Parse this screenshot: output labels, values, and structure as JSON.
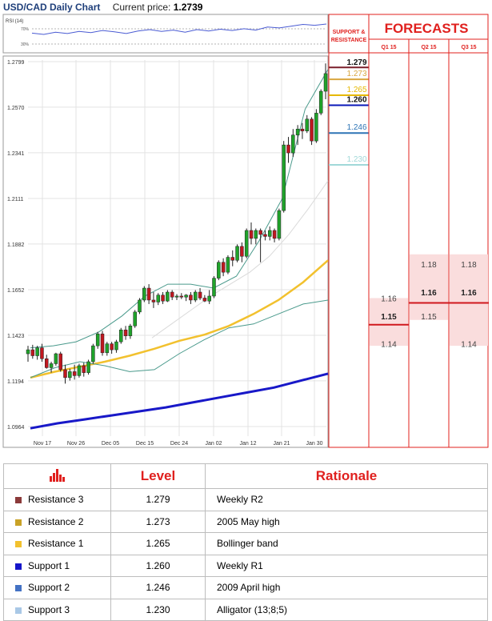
{
  "header": {
    "title": "USD/CAD Daily Chart",
    "price_label": "Current price:",
    "price_value": "1.2739"
  },
  "rsi": {
    "label": "RSI (14)",
    "tick_70": "70%",
    "tick_30": "30%"
  },
  "side": {
    "sr_title_1": "SUPPORT &",
    "sr_title_2": "RESISTANCE",
    "forecasts_title": "FORECASTS",
    "quarters": [
      "Q1 15",
      "Q2 15",
      "Q3 15"
    ]
  },
  "sr_levels": [
    {
      "value": "1.279",
      "color": "#7a1f2b",
      "bold": true
    },
    {
      "value": "1.273",
      "color": "#d9a640",
      "bold": false
    },
    {
      "value": "1.265",
      "color": "#e6b800",
      "bold": false
    },
    {
      "value": "1.260",
      "color": "#0a17b8",
      "bold": true
    },
    {
      "value": "1.246",
      "color": "#2e75b6",
      "bold": false
    },
    {
      "value": "1.230",
      "color": "#a0d8d8",
      "bold": false
    }
  ],
  "forecast_cells": [
    {
      "col": 0,
      "lo": 1.137,
      "hi": 1.161
    },
    {
      "col": 1,
      "lo": 1.15,
      "hi": 1.183
    },
    {
      "col": 2,
      "lo": 1.137,
      "hi": 1.183
    }
  ],
  "forecast_labels": [
    {
      "col": 0,
      "text": "1.16",
      "value": 1.161,
      "bold": false
    },
    {
      "col": 0,
      "text": "1.15",
      "value": 1.152,
      "bold": true
    },
    {
      "col": 0,
      "text": "1.14",
      "value": 1.138,
      "bold": false
    },
    {
      "col": 1,
      "text": "1.18",
      "value": 1.178,
      "bold": false
    },
    {
      "col": 1,
      "text": "1.16",
      "value": 1.164,
      "bold": true
    },
    {
      "col": 1,
      "text": "1.15",
      "value": 1.152,
      "bold": false
    },
    {
      "col": 2,
      "text": "1.18",
      "value": 1.178,
      "bold": false
    },
    {
      "col": 2,
      "text": "1.16",
      "value": 1.164,
      "bold": true
    },
    {
      "col": 2,
      "text": "1.14",
      "value": 1.138,
      "bold": false
    }
  ],
  "forecast_lines": [
    {
      "col": 0,
      "value": 1.15
    },
    {
      "col": 1,
      "value": 1.161
    },
    {
      "col": 2,
      "value": 1.161
    }
  ],
  "table": {
    "head": {
      "level": "Level",
      "rationale": "Rationale"
    },
    "rows": [
      {
        "name": "Resistance 3",
        "level": "1.279",
        "rationale": "Weekly R2",
        "color": "#8b3a3a"
      },
      {
        "name": "Resistance 2",
        "level": "1.273",
        "rationale": "2005 May high",
        "color": "#c9a227"
      },
      {
        "name": "Resistance 1",
        "level": "1.265",
        "rationale": "Bollinger band",
        "color": "#f2c12e"
      },
      {
        "name": "Support 1",
        "level": "1.260",
        "rationale": "Weekly R1",
        "color": "#1515c9"
      },
      {
        "name": "Support 2",
        "level": "1.246",
        "rationale": "2009 April high",
        "color": "#4472c4"
      },
      {
        "name": "Support 3",
        "level": "1.230",
        "rationale": "Alligator (13;8;5)",
        "color": "#a9c8e6"
      }
    ]
  },
  "chart_data": {
    "type": "candlestick",
    "ylim": [
      1.09,
      1.283
    ],
    "yticks": [
      "1.2799",
      "1.2570",
      "1.2341",
      "1.2111",
      "1.1882",
      "1.1652",
      "1.1423",
      "1.1194",
      "1.0964"
    ],
    "xticks": [
      "Nov 17",
      "Nov 26",
      "Dec 05",
      "Dec 15",
      "Dec 24",
      "Jan 02",
      "Jan 12",
      "Jan 21",
      "Jan 30"
    ],
    "grid": true,
    "candles": [
      {
        "o": 1.133,
        "h": 1.137,
        "l": 1.129,
        "c": 1.135
      },
      {
        "o": 1.135,
        "h": 1.1375,
        "l": 1.1305,
        "c": 1.132
      },
      {
        "o": 1.132,
        "h": 1.137,
        "l": 1.13,
        "c": 1.136
      },
      {
        "o": 1.136,
        "h": 1.138,
        "l": 1.129,
        "c": 1.1305
      },
      {
        "o": 1.1305,
        "h": 1.1325,
        "l": 1.1255,
        "c": 1.126
      },
      {
        "o": 1.126,
        "h": 1.129,
        "l": 1.1235,
        "c": 1.128
      },
      {
        "o": 1.128,
        "h": 1.1335,
        "l": 1.127,
        "c": 1.133
      },
      {
        "o": 1.133,
        "h": 1.134,
        "l": 1.124,
        "c": 1.125
      },
      {
        "o": 1.125,
        "h": 1.1275,
        "l": 1.118,
        "c": 1.121
      },
      {
        "o": 1.121,
        "h": 1.1255,
        "l": 1.1195,
        "c": 1.124
      },
      {
        "o": 1.124,
        "h": 1.1275,
        "l": 1.12,
        "c": 1.122
      },
      {
        "o": 1.122,
        "h": 1.128,
        "l": 1.121,
        "c": 1.127
      },
      {
        "o": 1.127,
        "h": 1.1285,
        "l": 1.1215,
        "c": 1.1235
      },
      {
        "o": 1.1235,
        "h": 1.13,
        "l": 1.1225,
        "c": 1.129
      },
      {
        "o": 1.129,
        "h": 1.138,
        "l": 1.128,
        "c": 1.137
      },
      {
        "o": 1.137,
        "h": 1.144,
        "l": 1.1355,
        "c": 1.143
      },
      {
        "o": 1.143,
        "h": 1.1445,
        "l": 1.132,
        "c": 1.1335
      },
      {
        "o": 1.1335,
        "h": 1.139,
        "l": 1.132,
        "c": 1.138
      },
      {
        "o": 1.138,
        "h": 1.139,
        "l": 1.133,
        "c": 1.135
      },
      {
        "o": 1.135,
        "h": 1.14,
        "l": 1.1335,
        "c": 1.139
      },
      {
        "o": 1.139,
        "h": 1.146,
        "l": 1.138,
        "c": 1.145
      },
      {
        "o": 1.145,
        "h": 1.147,
        "l": 1.14,
        "c": 1.142
      },
      {
        "o": 1.142,
        "h": 1.148,
        "l": 1.1405,
        "c": 1.147
      },
      {
        "o": 1.147,
        "h": 1.155,
        "l": 1.146,
        "c": 1.154
      },
      {
        "o": 1.154,
        "h": 1.161,
        "l": 1.153,
        "c": 1.16
      },
      {
        "o": 1.16,
        "h": 1.167,
        "l": 1.159,
        "c": 1.166
      },
      {
        "o": 1.166,
        "h": 1.168,
        "l": 1.158,
        "c": 1.16
      },
      {
        "o": 1.16,
        "h": 1.164,
        "l": 1.156,
        "c": 1.159
      },
      {
        "o": 1.159,
        "h": 1.1635,
        "l": 1.1575,
        "c": 1.1625
      },
      {
        "o": 1.1625,
        "h": 1.164,
        "l": 1.158,
        "c": 1.1595
      },
      {
        "o": 1.1595,
        "h": 1.165,
        "l": 1.159,
        "c": 1.164
      },
      {
        "o": 1.164,
        "h": 1.165,
        "l": 1.16,
        "c": 1.1615
      },
      {
        "o": 1.1615,
        "h": 1.163,
        "l": 1.16,
        "c": 1.162
      },
      {
        "o": 1.162,
        "h": 1.1635,
        "l": 1.1605,
        "c": 1.1615
      },
      {
        "o": 1.1615,
        "h": 1.163,
        "l": 1.1595,
        "c": 1.1625
      },
      {
        "o": 1.1625,
        "h": 1.164,
        "l": 1.158,
        "c": 1.16
      },
      {
        "o": 1.16,
        "h": 1.165,
        "l": 1.159,
        "c": 1.164
      },
      {
        "o": 1.164,
        "h": 1.166,
        "l": 1.16,
        "c": 1.161
      },
      {
        "o": 1.161,
        "h": 1.1625,
        "l": 1.159,
        "c": 1.1595
      },
      {
        "o": 1.1595,
        "h": 1.165,
        "l": 1.158,
        "c": 1.162
      },
      {
        "o": 1.162,
        "h": 1.172,
        "l": 1.161,
        "c": 1.171
      },
      {
        "o": 1.171,
        "h": 1.18,
        "l": 1.17,
        "c": 1.179
      },
      {
        "o": 1.179,
        "h": 1.181,
        "l": 1.172,
        "c": 1.174
      },
      {
        "o": 1.174,
        "h": 1.1825,
        "l": 1.173,
        "c": 1.1815
      },
      {
        "o": 1.1815,
        "h": 1.185,
        "l": 1.177,
        "c": 1.18
      },
      {
        "o": 1.18,
        "h": 1.188,
        "l": 1.179,
        "c": 1.187
      },
      {
        "o": 1.187,
        "h": 1.189,
        "l": 1.179,
        "c": 1.182
      },
      {
        "o": 1.182,
        "h": 1.196,
        "l": 1.181,
        "c": 1.195
      },
      {
        "o": 1.195,
        "h": 1.199,
        "l": 1.188,
        "c": 1.191
      },
      {
        "o": 1.191,
        "h": 1.196,
        "l": 1.188,
        "c": 1.195
      },
      {
        "o": 1.195,
        "h": 1.196,
        "l": 1.179,
        "c": 1.193
      },
      {
        "o": 1.193,
        "h": 1.195,
        "l": 1.19,
        "c": 1.192
      },
      {
        "o": 1.192,
        "h": 1.197,
        "l": 1.19,
        "c": 1.195
      },
      {
        "o": 1.195,
        "h": 1.196,
        "l": 1.189,
        "c": 1.191
      },
      {
        "o": 1.191,
        "h": 1.206,
        "l": 1.19,
        "c": 1.205
      },
      {
        "o": 1.205,
        "h": 1.24,
        "l": 1.204,
        "c": 1.238
      },
      {
        "o": 1.238,
        "h": 1.242,
        "l": 1.229,
        "c": 1.234
      },
      {
        "o": 1.234,
        "h": 1.246,
        "l": 1.232,
        "c": 1.243
      },
      {
        "o": 1.243,
        "h": 1.248,
        "l": 1.238,
        "c": 1.246
      },
      {
        "o": 1.246,
        "h": 1.249,
        "l": 1.241,
        "c": 1.245
      },
      {
        "o": 1.245,
        "h": 1.253,
        "l": 1.244,
        "c": 1.251
      },
      {
        "o": 1.251,
        "h": 1.252,
        "l": 1.238,
        "c": 1.24
      },
      {
        "o": 1.24,
        "h": 1.256,
        "l": 1.239,
        "c": 1.254
      },
      {
        "o": 1.254,
        "h": 1.266,
        "l": 1.253,
        "c": 1.265
      },
      {
        "o": 1.265,
        "h": 1.279,
        "l": 1.261,
        "c": 1.2739
      }
    ],
    "ma_yellow": [
      1.121,
      1.124,
      1.1265,
      1.129,
      1.132,
      1.1355,
      1.1395,
      1.1425,
      1.147,
      1.153,
      1.16,
      1.169,
      1.18
    ],
    "ma_blue": [
      1.0955,
      1.098,
      1.1,
      1.102,
      1.104,
      1.106,
      1.1085,
      1.111,
      1.1135,
      1.116,
      1.1195,
      1.123
    ],
    "bb_upper": [
      1.136,
      1.137,
      1.139,
      1.144,
      1.152,
      1.162,
      1.168,
      1.168,
      1.166,
      1.172,
      1.19,
      1.211,
      1.256,
      1.276
    ],
    "bb_lower": [
      1.121,
      1.126,
      1.129,
      1.127,
      1.124,
      1.125,
      1.133,
      1.14,
      1.146,
      1.148,
      1.153,
      1.158,
      1.16
    ],
    "alligator": [
      1.141,
      1.148,
      1.155,
      1.162,
      1.168,
      1.174,
      1.182,
      1.193,
      1.206,
      1.22
    ],
    "rsi_values": [
      58,
      55,
      60,
      57,
      62,
      59,
      64,
      61,
      57,
      63,
      66,
      62,
      65,
      60,
      66,
      63,
      67,
      64,
      68,
      65,
      72,
      70,
      74,
      78,
      76,
      79
    ]
  }
}
